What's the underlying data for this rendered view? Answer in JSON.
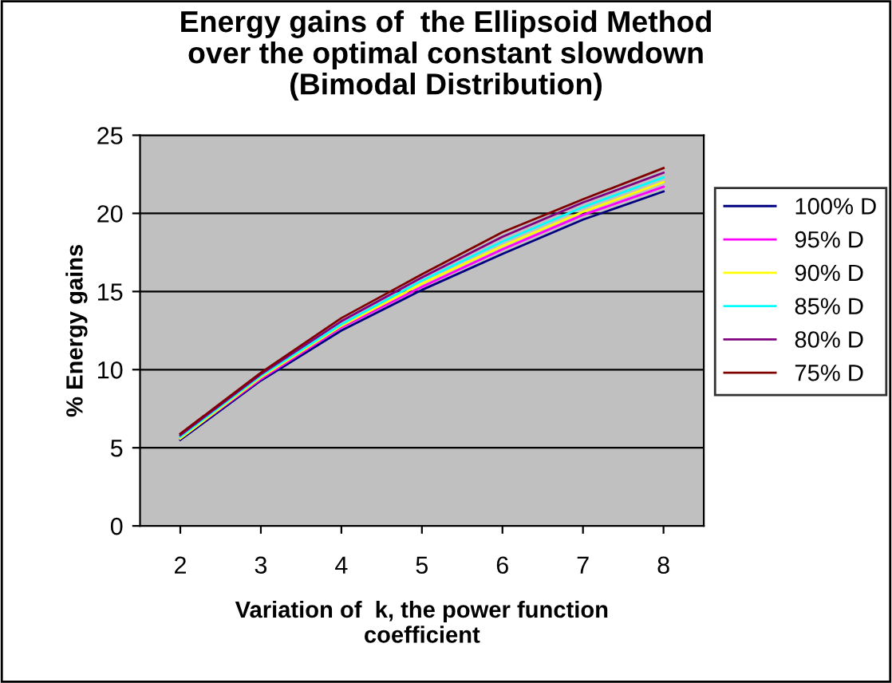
{
  "chart_data": {
    "type": "line",
    "title": "Energy gains of  the Ellipsoid Method\nover the optimal constant slowdown\n(Bimodal Distribution)",
    "xlabel": "Variation of  k, the power function\ncoefficient",
    "ylabel": "% Energy gains",
    "categories": [
      "2",
      "3",
      "4",
      "5",
      "6",
      "7",
      "8"
    ],
    "series": [
      {
        "name": "100% D",
        "color": "#000080",
        "values": [
          5.5,
          9.3,
          12.5,
          15.1,
          17.4,
          19.6,
          21.4
        ]
      },
      {
        "name": "95% D",
        "color": "#ff00ff",
        "values": [
          5.6,
          9.4,
          12.7,
          15.3,
          17.7,
          19.9,
          21.7
        ]
      },
      {
        "name": "90% D",
        "color": "#ffff00",
        "values": [
          5.6,
          9.5,
          12.8,
          15.5,
          17.9,
          20.1,
          22.0
        ]
      },
      {
        "name": "85% D",
        "color": "#00ffff",
        "values": [
          5.7,
          9.6,
          12.9,
          15.7,
          18.2,
          20.4,
          22.3
        ]
      },
      {
        "name": "80% D",
        "color": "#800080",
        "values": [
          5.8,
          9.7,
          13.1,
          15.9,
          18.5,
          20.7,
          22.6
        ]
      },
      {
        "name": "75% D",
        "color": "#800000",
        "values": [
          5.9,
          9.8,
          13.3,
          16.1,
          18.8,
          20.9,
          22.9
        ]
      }
    ],
    "ylim": [
      0,
      25
    ],
    "yticks": [
      0,
      5,
      10,
      15,
      20,
      25
    ],
    "grid": "y",
    "legend": "right",
    "marker": "none",
    "line_style": "solid"
  }
}
